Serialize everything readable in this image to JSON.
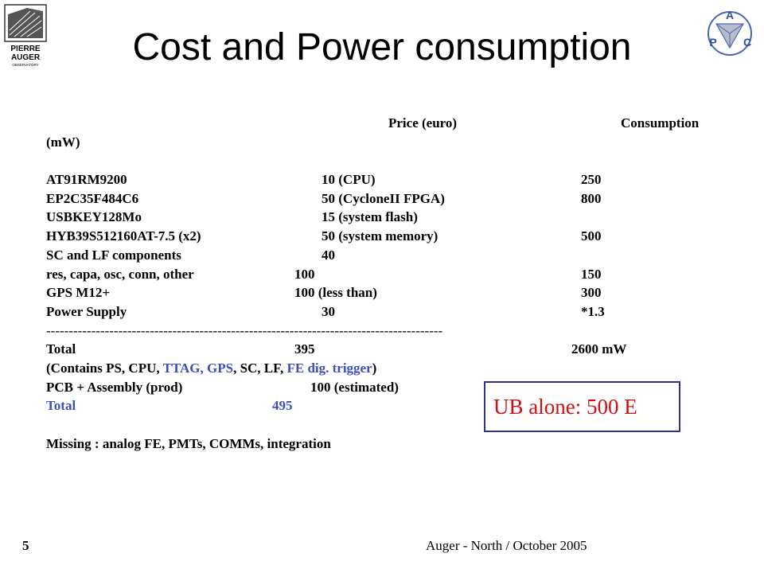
{
  "slide": {
    "title": "Cost and Power consumption",
    "logo_left_text": [
      "PIERRE",
      "AUGER",
      "OBSERVATORY"
    ],
    "logo_right_letters": [
      "A",
      "P",
      "C"
    ],
    "header": {
      "price": "Price (euro)",
      "consumption": "Consumption",
      "unit": "(mW)"
    },
    "rows": [
      {
        "name": "AT91RM9200",
        "price": "10 (CPU)",
        "power": "250"
      },
      {
        "name": "EP2C35F484C6",
        "price": "50 (CycloneII FPGA)",
        "power": "800"
      },
      {
        "name": "USBKEY128Mo",
        "price": "15 (system flash)",
        "power": ""
      },
      {
        "name": "HYB39S512160AT-7.5 (x2)",
        "price": "50 (system memory)",
        "power": "500"
      },
      {
        "name": "SC and LF components",
        "price": "40",
        "power": ""
      },
      {
        "name": "res, capa, osc, conn, other",
        "price": "100",
        "power": "150"
      },
      {
        "name": "GPS M12+",
        "price": "100 (less than)",
        "power": "300"
      },
      {
        "name": "Power Supply",
        "price": "30",
        "power": "*1.3"
      }
    ],
    "separator": "----------------------------------------------------------------------------------------",
    "total": {
      "label": "Total",
      "price": "395",
      "power": "2600 mW"
    },
    "contains": {
      "prefix": "(Contains PS, CPU, ",
      "ttag": "TTAG,",
      "space1": " ",
      "gps": "GPS",
      "mid": ", SC, LF, ",
      "fe": "FE dig. trigger",
      "suffix": ")"
    },
    "pcb": {
      "name": "PCB + Assembly (prod)",
      "price": "100 (estimated)"
    },
    "total2": {
      "label": "Total",
      "value": "495"
    },
    "missing": "Missing : analog FE, PMTs, COMMs, integration",
    "callout": "UB alone: 500 E",
    "footer": {
      "page": "5",
      "text": "Auger - North / October 2005"
    },
    "colors": {
      "accent_blue": "#3b4fbf",
      "callout_red": "#d01010",
      "box_border": "#2e3192"
    }
  }
}
